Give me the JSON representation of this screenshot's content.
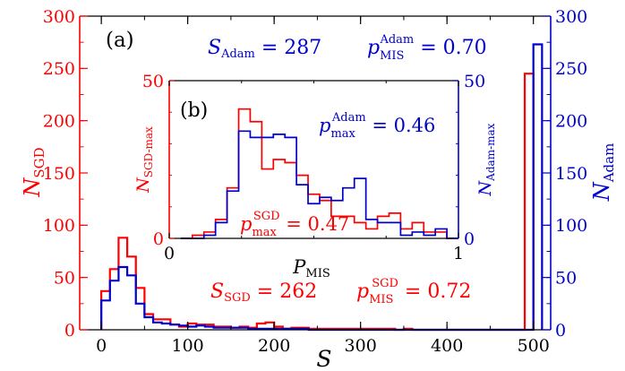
{
  "colors": {
    "sgd": "#ff0000",
    "adam": "#0000cc",
    "axis": "#000000"
  },
  "chart_data": [
    {
      "panel": "(a)",
      "type": "histogram",
      "x": {
        "label": "S",
        "ticks": [
          0,
          100,
          200,
          300,
          400,
          500
        ],
        "lim": [
          -25,
          520
        ]
      },
      "y_left": {
        "label": "N",
        "label_sub": "SGD",
        "ticks": [
          0,
          50,
          100,
          150,
          200,
          250,
          300
        ],
        "lim": [
          0,
          300
        ]
      },
      "y_right": {
        "label": "N",
        "label_sub": "Adam",
        "ticks": [
          0,
          50,
          100,
          150,
          200,
          250,
          300
        ],
        "lim": [
          0,
          300
        ]
      },
      "annotations": {
        "s_adam": {
          "main": "S",
          "sub": "Adam",
          "rest": " = 287"
        },
        "p_adam": {
          "main": "p",
          "sub": "MIS",
          "sup": "Adam",
          "rest": " = 0.70"
        },
        "s_sgd": {
          "main": "S",
          "sub": "SGD",
          "rest": " = 262"
        },
        "p_sgd": {
          "main": "p",
          "sub": "MIS",
          "sup": "SGD",
          "rest": " = 0.72"
        }
      },
      "bin_width": 10,
      "series": [
        {
          "name": "SGD",
          "bin_starts": [
            0,
            10,
            20,
            30,
            40,
            50,
            60,
            70,
            80,
            90,
            100,
            110,
            120,
            130,
            140,
            150,
            160,
            170,
            180,
            190,
            200,
            210,
            220,
            230,
            240,
            250,
            260,
            270,
            280,
            290,
            300,
            310,
            320,
            330,
            340,
            350,
            360,
            370,
            380,
            390,
            400,
            410,
            420,
            430,
            440,
            450,
            460,
            470,
            480,
            490
          ],
          "values": [
            37,
            58,
            88,
            70,
            40,
            15,
            10,
            10,
            5,
            3,
            6,
            5,
            5,
            3,
            3,
            2,
            3,
            2,
            6,
            7,
            3,
            1,
            2,
            2,
            1,
            1,
            1,
            1,
            1,
            1,
            1,
            1,
            1,
            1,
            0,
            1,
            0,
            0,
            0,
            0,
            0,
            0,
            0,
            0,
            0,
            0,
            0,
            0,
            0,
            245
          ]
        },
        {
          "name": "Adam",
          "bin_starts": [
            0,
            10,
            20,
            30,
            40,
            50,
            60,
            70,
            80,
            90,
            100,
            110,
            120,
            130,
            140,
            150,
            160,
            170,
            180,
            190,
            200,
            210,
            220,
            230,
            240,
            250,
            260,
            270,
            280,
            290,
            300,
            310,
            320,
            330,
            340,
            350,
            360,
            370,
            380,
            390,
            400,
            410,
            420,
            430,
            440,
            450,
            460,
            470,
            480,
            490,
            500
          ],
          "values": [
            28,
            47,
            60,
            52,
            25,
            12,
            7,
            6,
            5,
            4,
            3,
            4,
            3,
            2,
            2,
            2,
            2,
            1,
            1,
            1,
            1,
            1,
            1,
            1,
            0,
            0,
            0,
            0,
            0,
            0,
            0,
            0,
            0,
            0,
            0,
            0,
            0,
            0,
            0,
            0,
            0,
            0,
            0,
            0,
            0,
            0,
            0,
            0,
            0,
            0,
            273
          ]
        }
      ]
    },
    {
      "panel": "(b)",
      "type": "histogram",
      "x": {
        "label": "P",
        "label_sub": "MIS",
        "ticks": [
          0,
          1
        ],
        "lim": [
          0,
          1
        ]
      },
      "y_left": {
        "label": "N",
        "label_sub": "SGD-max",
        "ticks": [
          0,
          50
        ],
        "lim": [
          0,
          50
        ]
      },
      "y_right": {
        "label": "N",
        "label_sub": "Adam-max",
        "ticks": [
          0,
          50
        ],
        "lim": [
          0,
          50
        ]
      },
      "annotations": {
        "p_adam": {
          "main": "p",
          "sub": "max",
          "sup": "Adam",
          "rest": " = 0.46"
        },
        "p_sgd": {
          "main": "p",
          "sub": "max",
          "sup": "SGD",
          "rest": " = 0.47"
        }
      },
      "bin_width": 0.04,
      "series": [
        {
          "name": "SGD",
          "bin_starts": [
            0.04,
            0.08,
            0.12,
            0.16,
            0.2,
            0.24,
            0.28,
            0.32,
            0.36,
            0.4,
            0.44,
            0.48,
            0.52,
            0.56,
            0.6,
            0.64,
            0.68,
            0.72,
            0.76,
            0.8,
            0.84,
            0.88,
            0.92,
            0.96
          ],
          "values": [
            0,
            1,
            2,
            6,
            16,
            41,
            37,
            22,
            25,
            24,
            20,
            14,
            12,
            7,
            7,
            5,
            3,
            7,
            8,
            3,
            5,
            2,
            2,
            0
          ]
        },
        {
          "name": "Adam",
          "bin_starts": [
            0.04,
            0.08,
            0.12,
            0.16,
            0.2,
            0.24,
            0.28,
            0.32,
            0.36,
            0.4,
            0.44,
            0.48,
            0.52,
            0.56,
            0.6,
            0.64,
            0.68,
            0.72,
            0.76,
            0.8,
            0.84,
            0.88,
            0.92,
            0.96
          ],
          "values": [
            0,
            0,
            1,
            5,
            15,
            34,
            32,
            32,
            33,
            32,
            17,
            11,
            13,
            12,
            16,
            19,
            6,
            5,
            5,
            1,
            2,
            1,
            3,
            0
          ]
        }
      ]
    }
  ]
}
